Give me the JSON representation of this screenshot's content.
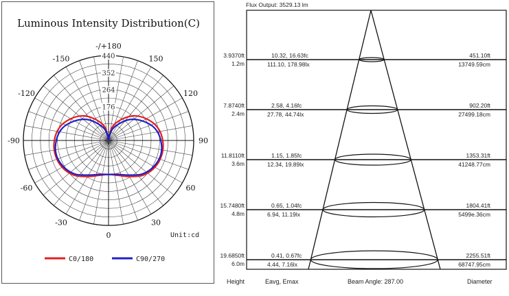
{
  "chart_data": [
    {
      "type": "polar",
      "title": "Luminous Intensity Distribution(C)",
      "unit_label": "Unit:cd",
      "radial_ticks": [
        176,
        264,
        352,
        440
      ],
      "rmax": 440,
      "angle_labels": [
        {
          "text": "-/+180",
          "angle": 180
        },
        {
          "text": "-150",
          "angle": -150
        },
        {
          "text": "150",
          "angle": 150
        },
        {
          "text": "-120",
          "angle": -120
        },
        {
          "text": "120",
          "angle": 120
        },
        {
          "text": "-90",
          "angle": -90
        },
        {
          "text": "90",
          "angle": 90
        },
        {
          "text": "-60",
          "angle": -60
        },
        {
          "text": "60",
          "angle": 60
        },
        {
          "text": "-30",
          "angle": -30
        },
        {
          "text": "30",
          "angle": 30
        },
        {
          "text": "0",
          "angle": 0
        }
      ],
      "angles": [
        0,
        15,
        30,
        45,
        60,
        75,
        90,
        105,
        120,
        135,
        150,
        165,
        180
      ],
      "series": [
        {
          "name": "C0/180",
          "color": "#e02020",
          "values": [
            176,
            187,
            216,
            254,
            277,
            285,
            280,
            262,
            225,
            180,
            122,
            70,
            0
          ]
        },
        {
          "name": "C90/270",
          "color": "#1f1fc8",
          "values": [
            176,
            182,
            207,
            246,
            270,
            280,
            270,
            247,
            202,
            153,
            95,
            50,
            0
          ]
        }
      ]
    },
    {
      "type": "table",
      "flux_output": "Flux Output: 3529.13 lm",
      "beam_angle": "Beam Angle: 287.00",
      "footer": {
        "height": "Height",
        "eavg": "Eavg, Emax",
        "beam": "Beam Angle: 287.00",
        "diameter": "Diameter"
      },
      "rows": [
        {
          "ft": "3.9370ft",
          "m": "1.2m",
          "fc": "10.32, 16.63fc",
          "lx": "111.10, 178.98lx",
          "dia_ft": "451.10ft",
          "dia_cm": "13749.59cm"
        },
        {
          "ft": "7.8740ft",
          "m": "2.4m",
          "fc": "2.58, 4.16fc",
          "lx": "27.78, 44.74lx",
          "dia_ft": "902.20ft",
          "dia_cm": "27499.18cm"
        },
        {
          "ft": "11.8110ft",
          "m": "3.6m",
          "fc": "1.15, 1.85fc",
          "lx": "12.34, 19.89lx",
          "dia_ft": "1353.31ft",
          "dia_cm": "41248.77cm"
        },
        {
          "ft": "15.7480ft",
          "m": "4.8m",
          "fc": "0.65, 1.04fc",
          "lx": "6.94, 11.19lx",
          "dia_ft": "1804.41ft",
          "dia_cm": "5499e.36cm"
        },
        {
          "ft": "19.6850ft",
          "m": "6.0m",
          "fc": "0.41, 0.67fc",
          "lx": "4.44, 7.16lx",
          "dia_ft": "2255.51ft",
          "dia_cm": "68747.95cm"
        }
      ]
    }
  ]
}
